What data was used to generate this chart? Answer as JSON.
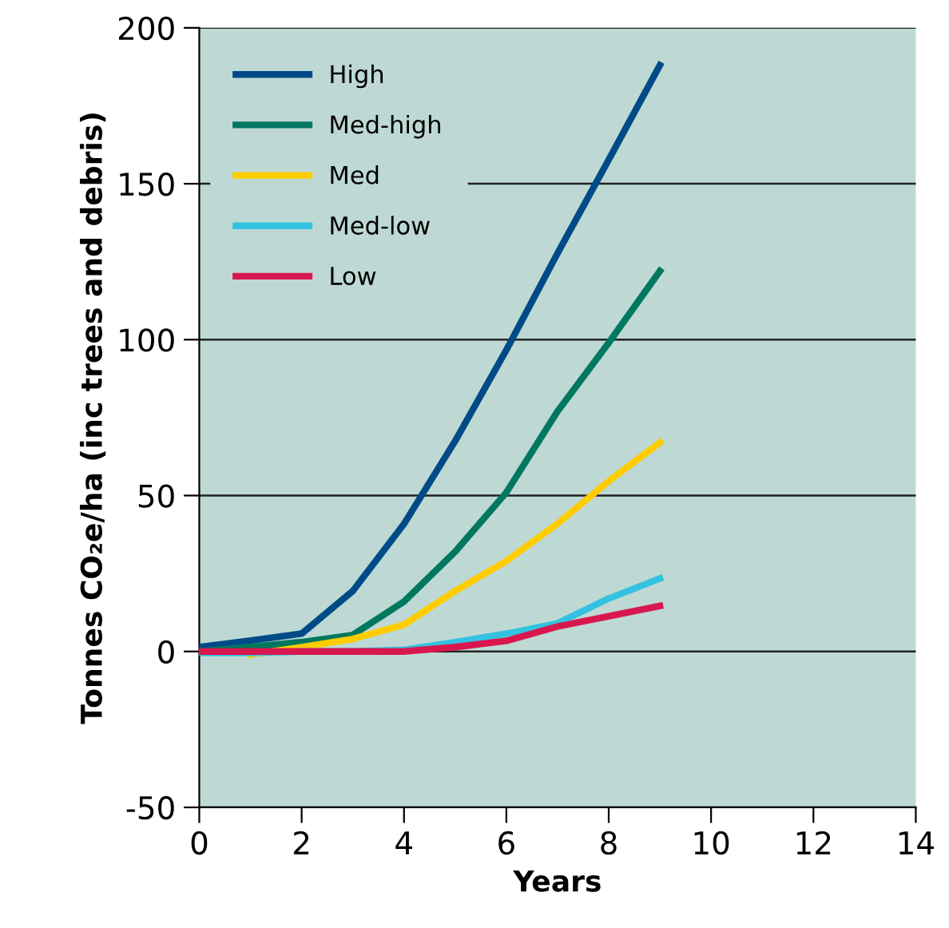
{
  "chart_data": {
    "type": "line",
    "xlabel": "Years",
    "ylabel": "Tonnes CO₂e/ha (inc trees and debris)",
    "x": [
      0,
      1,
      2,
      3,
      4,
      5,
      6,
      7,
      8,
      9
    ],
    "series": [
      {
        "name": "High",
        "color": "#004b87",
        "values": [
          1.4,
          3.5,
          5.7,
          19.4,
          40.9,
          67.5,
          96.7,
          127.7,
          157.7,
          188
        ]
      },
      {
        "name": "Med-high",
        "color": "#00785f",
        "values": [
          0,
          1.4,
          3,
          5.3,
          16,
          32,
          51,
          77,
          99,
          122
        ]
      },
      {
        "name": "Med",
        "color": "#ffcc00",
        "values": [
          null,
          -1,
          1.4,
          4,
          8.6,
          19.4,
          29,
          41,
          54.6,
          67
        ]
      },
      {
        "name": "Med-low",
        "color": "#33c3e0",
        "values": [
          -0.5,
          -0.5,
          0,
          0,
          0.5,
          3,
          5.7,
          9,
          17,
          23.4
        ]
      },
      {
        "name": "Low",
        "color": "#d9174f",
        "values": [
          0,
          0,
          0,
          0,
          0,
          1.4,
          3.4,
          8,
          11.3,
          14.6
        ]
      }
    ],
    "xlim": [
      0,
      14
    ],
    "xticks": [
      0,
      2,
      4,
      6,
      8,
      10,
      12,
      14
    ],
    "ylim": [
      -50,
      200
    ],
    "yticks": [
      -50,
      0,
      50,
      100,
      150,
      200
    ],
    "grid": "y",
    "legend": "top left",
    "marker": "none",
    "line_style": "solid"
  }
}
